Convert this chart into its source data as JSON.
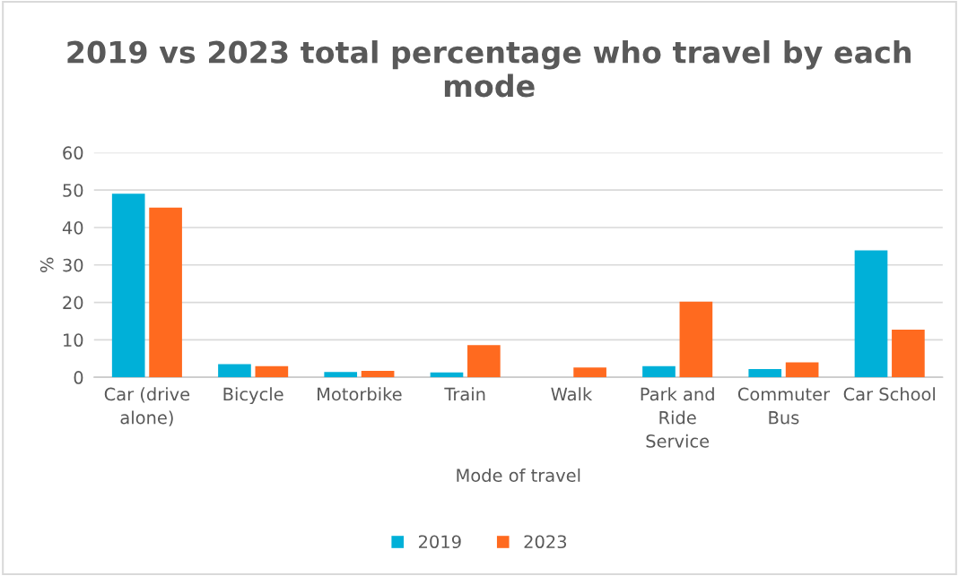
{
  "chart_data": {
    "type": "bar",
    "title": "2019 vs 2023 total percentage who travel by each mode",
    "xlabel": "Mode of travel",
    "ylabel": "%",
    "categories": [
      "Car (drive alone)",
      "Bicycle",
      "Motorbike",
      "Train",
      "Walk",
      "Park and Ride Service",
      "Commuter Bus",
      "Car School"
    ],
    "series": [
      {
        "name": "2019",
        "color": "#00b0d8",
        "values": [
          49.0,
          3.5,
          1.4,
          1.3,
          0,
          3.0,
          2.2,
          33.9
        ]
      },
      {
        "name": "2023",
        "color": "#ff6a1f",
        "values": [
          45.3,
          3.0,
          1.7,
          8.6,
          2.6,
          20.2,
          4.0,
          12.7
        ]
      }
    ],
    "ylim": [
      0,
      60
    ],
    "yticks": [
      0,
      10,
      20,
      30,
      40,
      50,
      60
    ],
    "grid": "y",
    "legend": "bottom"
  }
}
